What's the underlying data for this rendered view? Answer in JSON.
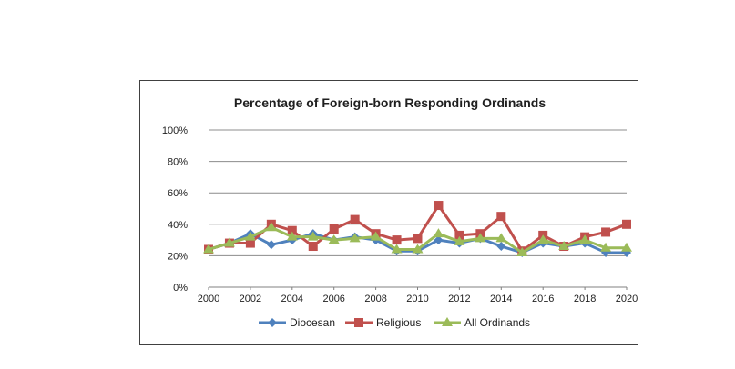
{
  "chart_data": {
    "type": "line",
    "title": "Percentage of Foreign-born Responding Ordinands",
    "xlabel": "",
    "ylabel": "",
    "x": [
      2000,
      2001,
      2002,
      2003,
      2004,
      2005,
      2006,
      2007,
      2008,
      2009,
      2010,
      2011,
      2012,
      2013,
      2014,
      2015,
      2016,
      2017,
      2018,
      2019,
      2020
    ],
    "x_ticks": [
      "2000",
      "2002",
      "2004",
      "2006",
      "2008",
      "2010",
      "2012",
      "2014",
      "2016",
      "2018",
      "2020"
    ],
    "y_ticks": [
      "0%",
      "20%",
      "40%",
      "60%",
      "80%",
      "100%"
    ],
    "ylim": [
      0,
      100
    ],
    "grid": "horizontal",
    "legend_position": "bottom",
    "series": [
      {
        "name": "Diocesan",
        "color": "#4f81bd",
        "marker": "diamond",
        "values": [
          24,
          28,
          34,
          27,
          30,
          34,
          30,
          32,
          30,
          23,
          23,
          30,
          28,
          31,
          26,
          22,
          28,
          26,
          28,
          22,
          22
        ]
      },
      {
        "name": "Religious",
        "color": "#c0504d",
        "marker": "square",
        "values": [
          24,
          28,
          28,
          40,
          36,
          26,
          37,
          43,
          34,
          30,
          31,
          52,
          33,
          34,
          45,
          23,
          33,
          26,
          32,
          35,
          40
        ]
      },
      {
        "name": "All Ordinands",
        "color": "#9bbb59",
        "marker": "triangle",
        "values": [
          24,
          28,
          32,
          38,
          32,
          32,
          30,
          31,
          32,
          24,
          24,
          34,
          29,
          31,
          31,
          22,
          30,
          26,
          30,
          25,
          25
        ]
      }
    ]
  }
}
